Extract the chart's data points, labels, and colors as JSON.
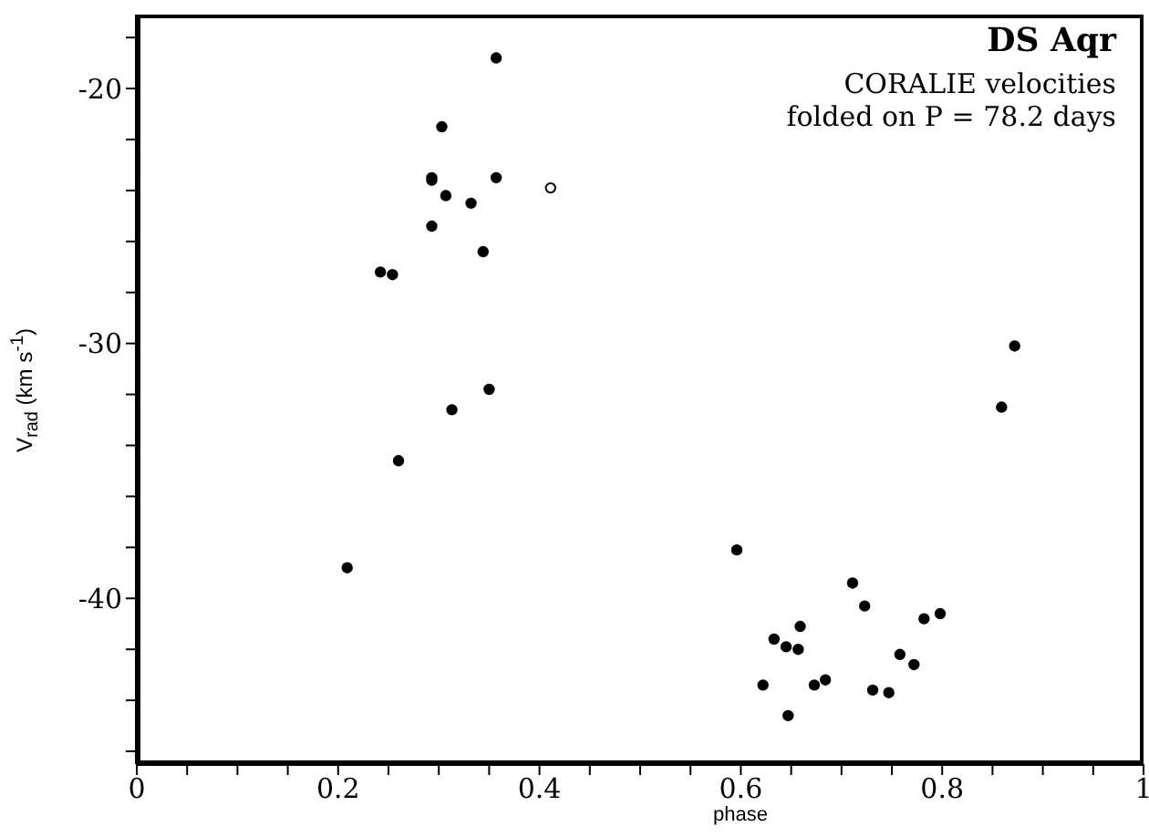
{
  "chart_data": {
    "type": "scatter",
    "title": "DS Aqr",
    "subtitle": "CORALIE velocities\nfolded on P = 78.2 days",
    "xlabel": "phase",
    "ylabel": "V$_{rad}$ (km s$^{-1}$)",
    "xlim": [
      0,
      1
    ],
    "xticks": [
      0,
      {
        "value": 0.05,
        "label": null
      },
      {
        "value": 0.1,
        "label": null
      },
      {
        "value": 0.15,
        "label": null
      },
      0.2,
      {
        "value": 0.25,
        "label": null
      },
      {
        "value": 0.3,
        "label": null
      },
      {
        "value": 0.35,
        "label": null
      },
      0.4,
      {
        "value": 0.45,
        "label": null
      },
      {
        "value": 0.5,
        "label": null
      },
      {
        "value": 0.55,
        "label": null
      },
      0.6,
      {
        "value": 0.65,
        "label": null
      },
      {
        "value": 0.7,
        "label": null
      },
      {
        "value": 0.75,
        "label": null
      },
      0.8,
      {
        "value": 0.85,
        "label": null
      },
      {
        "value": 0.9,
        "label": null
      },
      {
        "value": 0.95,
        "label": null
      },
      1
    ],
    "ylim": [
      -46.5,
      -17.1
    ],
    "yticks": [
      {
        "value": -46,
        "label": null
      },
      {
        "value": -44,
        "label": null
      },
      {
        "value": -42,
        "label": null
      },
      -40,
      {
        "value": -38,
        "label": null
      },
      {
        "value": -36,
        "label": null
      },
      {
        "value": -34,
        "label": null
      },
      {
        "value": -32,
        "label": null
      },
      -30,
      {
        "value": -28,
        "label": null
      },
      {
        "value": -26,
        "label": null
      },
      {
        "value": -24,
        "label": null
      },
      {
        "value": -22,
        "label": null
      },
      -20,
      {
        "value": -18,
        "label": null
      }
    ],
    "grid": false,
    "legend": false,
    "marker": "circle",
    "series": [
      {
        "color": "#000000",
        "x": [
          0.209,
          0.26,
          0.357,
          0.303,
          0.293,
          0.293,
          0.357,
          0.307,
          0.332,
          0.293,
          0.344,
          0.242,
          0.254,
          0.35,
          0.313,
          0.872,
          0.859,
          0.596,
          0.711,
          0.723,
          0.798,
          0.782,
          0.659,
          0.633,
          0.645,
          0.657,
          0.758,
          0.772,
          0.622,
          0.673,
          0.684,
          0.731,
          0.747,
          0.647
        ],
        "values": [
          -38.8,
          -34.6,
          -18.8,
          -21.5,
          -23.5,
          -23.6,
          -23.5,
          -24.2,
          -24.5,
          -25.4,
          -26.4,
          -27.2,
          -27.3,
          -31.8,
          -32.6,
          -30.1,
          -32.5,
          -38.1,
          -39.4,
          -40.3,
          -40.6,
          -40.8,
          -41.1,
          -41.6,
          -41.9,
          -42.0,
          -42.2,
          -42.6,
          -43.4,
          -43.4,
          -43.2,
          -43.6,
          -43.7,
          -44.6
        ]
      },
      {
        "color": "#ffffff",
        "x": [
          0.411
        ],
        "values": [
          -23.9
        ]
      }
    ]
  }
}
